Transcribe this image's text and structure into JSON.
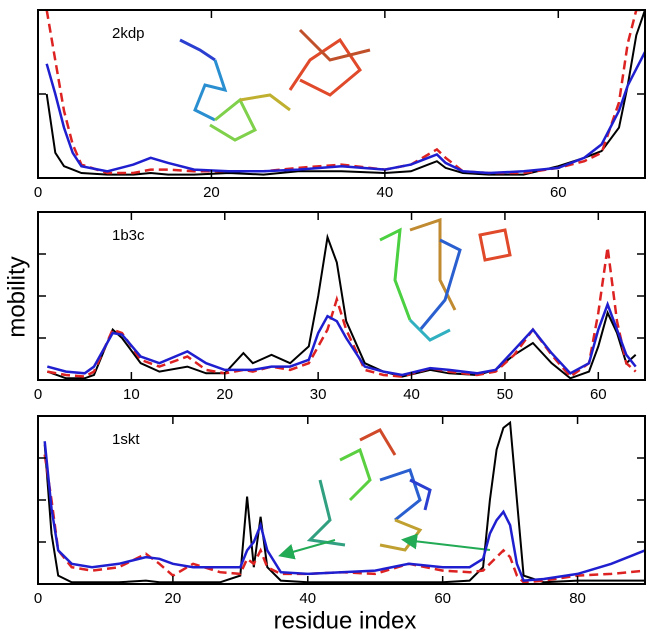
{
  "ylabel": "mobility",
  "xlabel": "residue index",
  "chart_data": [
    {
      "type": "line",
      "label": "2kdp",
      "x": [
        1,
        2,
        3,
        4,
        5,
        8,
        11,
        13,
        15,
        18,
        22,
        26,
        30,
        35,
        40,
        43,
        45,
        46,
        47,
        49,
        52,
        56,
        60,
        63,
        65,
        67,
        68,
        69,
        70
      ],
      "xlim": [
        0,
        70
      ],
      "xticks": [
        0,
        20,
        40,
        60
      ],
      "ylim": [
        0,
        1
      ],
      "yticks": [
        0.5
      ],
      "ytick_labels": false,
      "series": [
        {
          "color": "#000000",
          "dash": false,
          "values": [
            0.5,
            0.15,
            0.07,
            0.05,
            0.03,
            0.02,
            0.02,
            0.03,
            0.02,
            0.02,
            0.03,
            0.02,
            0.04,
            0.04,
            0.03,
            0.04,
            0.08,
            0.1,
            0.06,
            0.03,
            0.02,
            0.02,
            0.07,
            0.12,
            0.16,
            0.3,
            0.55,
            0.85,
            1.0
          ]
        },
        {
          "color": "#dd2222",
          "dash": true,
          "values": [
            1.0,
            0.7,
            0.4,
            0.2,
            0.08,
            0.03,
            0.03,
            0.05,
            0.05,
            0.04,
            0.04,
            0.04,
            0.06,
            0.08,
            0.05,
            0.08,
            0.14,
            0.17,
            0.12,
            0.04,
            0.03,
            0.03,
            0.06,
            0.1,
            0.15,
            0.45,
            0.8,
            1.0,
            1.0
          ]
        },
        {
          "color": "#1f1fd0",
          "dash": false,
          "values": [
            0.68,
            0.5,
            0.3,
            0.15,
            0.07,
            0.04,
            0.08,
            0.12,
            0.09,
            0.05,
            0.04,
            0.04,
            0.05,
            0.07,
            0.05,
            0.08,
            0.12,
            0.14,
            0.09,
            0.04,
            0.03,
            0.04,
            0.06,
            0.12,
            0.2,
            0.4,
            0.55,
            0.65,
            0.75
          ]
        }
      ]
    },
    {
      "type": "line",
      "label": "1b3c",
      "x": [
        1,
        3,
        5,
        6,
        8,
        9,
        11,
        13,
        16,
        18,
        20,
        22,
        23,
        25,
        27,
        29,
        30,
        31,
        32,
        33,
        35,
        37,
        39,
        42,
        44,
        47,
        49,
        51,
        53,
        55,
        57,
        59,
        60,
        61,
        62,
        63,
        64
      ],
      "xlim": [
        0,
        65
      ],
      "xticks": [
        0,
        10,
        20,
        30,
        40,
        50,
        60
      ],
      "ylim": [
        0,
        1
      ],
      "yticks": [
        0.25,
        0.5,
        0.75
      ],
      "ytick_labels": false,
      "series": [
        {
          "color": "#000000",
          "dash": false,
          "values": [
            0.05,
            0.01,
            0.01,
            0.03,
            0.3,
            0.25,
            0.1,
            0.05,
            0.08,
            0.04,
            0.04,
            0.16,
            0.1,
            0.15,
            0.1,
            0.2,
            0.5,
            0.85,
            0.7,
            0.35,
            0.1,
            0.05,
            0.02,
            0.06,
            0.04,
            0.03,
            0.06,
            0.15,
            0.22,
            0.1,
            0.01,
            0.05,
            0.2,
            0.4,
            0.28,
            0.1,
            0.15
          ]
        },
        {
          "color": "#dd2222",
          "dash": true,
          "values": [
            0.05,
            0.03,
            0.02,
            0.05,
            0.3,
            0.28,
            0.12,
            0.08,
            0.14,
            0.06,
            0.04,
            0.06,
            0.05,
            0.08,
            0.06,
            0.1,
            0.2,
            0.3,
            0.48,
            0.3,
            0.06,
            0.03,
            0.02,
            0.07,
            0.05,
            0.03,
            0.05,
            0.15,
            0.3,
            0.15,
            0.02,
            0.1,
            0.4,
            0.79,
            0.35,
            0.1,
            0.05
          ]
        },
        {
          "color": "#1f1fd0",
          "dash": false,
          "values": [
            0.08,
            0.05,
            0.04,
            0.08,
            0.28,
            0.27,
            0.14,
            0.1,
            0.17,
            0.1,
            0.06,
            0.06,
            0.06,
            0.08,
            0.08,
            0.12,
            0.28,
            0.38,
            0.35,
            0.25,
            0.08,
            0.05,
            0.03,
            0.07,
            0.06,
            0.04,
            0.06,
            0.18,
            0.3,
            0.16,
            0.04,
            0.1,
            0.3,
            0.45,
            0.3,
            0.15,
            0.08
          ]
        }
      ]
    },
    {
      "type": "line",
      "label": "1skt",
      "x": [
        1,
        2,
        3,
        5,
        8,
        12,
        16,
        18,
        20,
        23,
        27,
        30,
        31,
        32,
        33,
        34,
        36,
        40,
        45,
        50,
        55,
        60,
        64,
        66,
        67,
        68,
        69,
        70,
        71,
        72,
        75,
        80,
        85,
        90
      ],
      "xlim": [
        0,
        90
      ],
      "xticks": [
        0,
        20,
        40,
        60,
        80
      ],
      "ylim": [
        0,
        1
      ],
      "yticks": [
        0.25,
        0.5,
        0.75
      ],
      "ytick_labels": false,
      "series": [
        {
          "color": "#000000",
          "dash": false,
          "values": [
            0.83,
            0.3,
            0.05,
            0.01,
            0.01,
            0.01,
            0.02,
            0.01,
            0.01,
            0.01,
            0.01,
            0.05,
            0.52,
            0.1,
            0.4,
            0.1,
            0.02,
            0.01,
            0.01,
            0.01,
            0.01,
            0.01,
            0.02,
            0.1,
            0.5,
            0.8,
            0.93,
            0.96,
            0.5,
            0.05,
            0.01,
            0.02,
            0.02,
            0.02
          ]
        },
        {
          "color": "#dd2222",
          "dash": true,
          "values": [
            0.77,
            0.5,
            0.2,
            0.1,
            0.08,
            0.1,
            0.18,
            0.12,
            0.05,
            0.12,
            0.07,
            0.06,
            0.15,
            0.12,
            0.2,
            0.1,
            0.06,
            0.06,
            0.07,
            0.06,
            0.12,
            0.08,
            0.07,
            0.08,
            0.12,
            0.16,
            0.2,
            0.16,
            0.05,
            0.01,
            0.02,
            0.05,
            0.06,
            0.08
          ]
        },
        {
          "color": "#1f1fd0",
          "dash": false,
          "values": [
            0.85,
            0.45,
            0.2,
            0.12,
            0.1,
            0.12,
            0.16,
            0.15,
            0.12,
            0.1,
            0.1,
            0.1,
            0.2,
            0.25,
            0.35,
            0.2,
            0.07,
            0.06,
            0.07,
            0.08,
            0.12,
            0.1,
            0.1,
            0.15,
            0.3,
            0.38,
            0.43,
            0.35,
            0.12,
            0.02,
            0.03,
            0.06,
            0.12,
            0.2
          ]
        }
      ]
    }
  ]
}
